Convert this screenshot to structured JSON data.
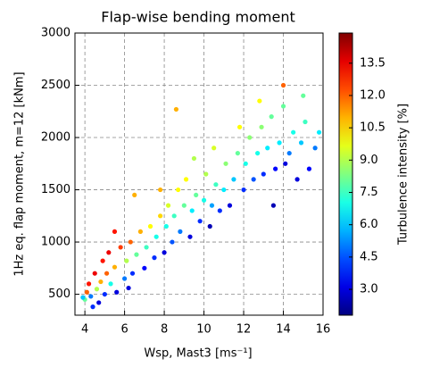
{
  "chart_data": {
    "type": "scatter",
    "title": "Flap-wise bending moment",
    "x_label": "Wsp, Mast3 [ms⁻¹]",
    "y_label": "1Hz eq. flap moment, m=12 [kNm]",
    "colorbar_label": "Turbulence intensity [%]",
    "colormap": "jet",
    "grid": true,
    "xlim": [
      3.5,
      16
    ],
    "ylim": [
      300,
      3000
    ],
    "clim": [
      1.8,
      14.9
    ],
    "xticks": [
      4,
      6,
      8,
      10,
      12,
      14,
      16
    ],
    "yticks": [
      500,
      1000,
      1500,
      2000,
      2500,
      3000
    ],
    "cticks": [
      {
        "value": 3,
        "label": "3.0"
      },
      4.5,
      {
        "value": 6,
        "label": "6.0"
      },
      7.5,
      {
        "value": 9,
        "label": "9.0"
      },
      10.5,
      {
        "value": 12,
        "label": "12.0"
      },
      13.5
    ],
    "x": [
      4.0,
      4.1,
      4.2,
      4.3,
      4.5,
      4.6,
      4.8,
      4.9,
      5.0,
      5.1,
      5.2,
      5.3,
      5.5,
      5.6,
      5.8,
      6.0,
      6.1,
      6.3,
      6.4,
      6.6,
      6.8,
      7.0,
      7.1,
      7.3,
      7.5,
      7.6,
      7.8,
      8.0,
      8.1,
      8.2,
      8.4,
      8.5,
      8.7,
      8.8,
      9.0,
      9.1,
      9.3,
      9.4,
      9.6,
      9.8,
      10.0,
      10.1,
      10.3,
      10.4,
      10.6,
      10.8,
      11.0,
      11.1,
      11.3,
      11.5,
      11.7,
      12.0,
      12.1,
      12.3,
      12.5,
      12.7,
      12.9,
      13.0,
      13.2,
      13.4,
      13.6,
      13.8,
      14.0,
      14.1,
      14.3,
      14.5,
      14.7,
      14.9,
      15.1,
      15.3,
      15.6,
      15.8,
      14.0,
      12.8,
      8.6,
      6.5,
      5.5,
      4.4,
      7.8,
      11.8,
      9.5,
      15.0,
      13.5,
      10.5,
      4.7,
      6.2,
      3.9
    ],
    "values": [
      450,
      520,
      600,
      480,
      700,
      550,
      620,
      820,
      500,
      700,
      900,
      600,
      760,
      520,
      950,
      650,
      820,
      1000,
      700,
      880,
      1100,
      750,
      950,
      1150,
      850,
      1050,
      1250,
      900,
      1150,
      1350,
      1000,
      1250,
      1500,
      1100,
      1350,
      1600,
      1050,
      1300,
      1450,
      1200,
      1400,
      1650,
      1150,
      1350,
      1550,
      1300,
      1500,
      1750,
      1350,
      1600,
      1850,
      1500,
      1750,
      2000,
      1600,
      1850,
      2100,
      1650,
      1900,
      2200,
      1700,
      1950,
      2300,
      1750,
      1850,
      2050,
      1600,
      1950,
      2150,
      1700,
      1900,
      2050,
      2500,
      2350,
      2270,
      1450,
      1100,
      380,
      1500,
      2100,
      1800,
      2400,
      1350,
      1900,
      420,
      560,
      470
    ],
    "color_values": [
      8,
      12,
      13,
      5,
      13.5,
      9,
      11,
      13,
      4,
      12,
      13.5,
      7,
      11,
      3,
      12.5,
      5,
      9,
      12,
      4,
      8,
      11,
      3.5,
      7.5,
      10,
      4,
      7,
      10.5,
      3,
      7,
      9.5,
      4.5,
      7.5,
      10,
      5,
      8,
      10,
      3,
      6.5,
      8,
      4,
      7,
      9,
      2.5,
      5.5,
      7.5,
      4,
      6.5,
      8.5,
      3,
      6,
      8,
      4,
      7,
      8.5,
      4.5,
      7,
      8.5,
      4,
      6.5,
      8,
      3.5,
      6.5,
      8,
      3,
      5,
      7,
      3,
      6,
      7.5,
      3.5,
      5,
      6.5,
      12,
      10,
      11,
      11,
      13,
      4,
      11,
      10,
      9,
      8,
      2.5,
      9.5,
      3,
      3,
      6
    ]
  }
}
